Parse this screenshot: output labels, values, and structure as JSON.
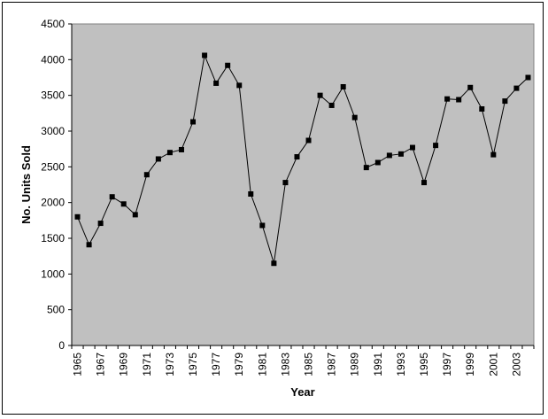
{
  "chart_data": {
    "type": "line",
    "title": "",
    "xlabel": "Year",
    "ylabel": "No. Units Sold",
    "ylim": [
      0,
      4500
    ],
    "yticks": [
      0,
      500,
      1000,
      1500,
      2000,
      2500,
      3000,
      3500,
      4000,
      4500
    ],
    "xtick_labels": [
      "1965",
      "1967",
      "1969",
      "1971",
      "1973",
      "1975",
      "1977",
      "1979",
      "1981",
      "1983",
      "1985",
      "1987",
      "1989",
      "1991",
      "1993",
      "1995",
      "1997",
      "1999",
      "2001",
      "2003"
    ],
    "grid": false,
    "legend": false,
    "plot_background": "#c0c0c0",
    "line_color": "#000000",
    "marker": "square",
    "series": [
      {
        "x": [
          1965,
          1966,
          1967,
          1968,
          1969,
          1970,
          1971,
          1972,
          1973,
          1974,
          1975,
          1976,
          1977,
          1978,
          1979,
          1980,
          1981,
          1982,
          1983,
          1984,
          1985,
          1986,
          1987,
          1988,
          1989,
          1990,
          1991,
          1992,
          1993,
          1994,
          1995,
          1996,
          1997,
          1998,
          1999,
          2000,
          2001,
          2002,
          2003,
          2004
        ],
        "values": [
          1800,
          1410,
          1710,
          2080,
          1980,
          1830,
          2390,
          2610,
          2700,
          2740,
          3130,
          4060,
          3670,
          3920,
          3640,
          2120,
          1680,
          1150,
          2280,
          2640,
          2870,
          3500,
          3360,
          3620,
          3190,
          2490,
          2560,
          2660,
          2680,
          2770,
          2280,
          2800,
          3450,
          3440,
          3610,
          3310,
          2670,
          3420,
          3600,
          3750
        ]
      }
    ]
  }
}
